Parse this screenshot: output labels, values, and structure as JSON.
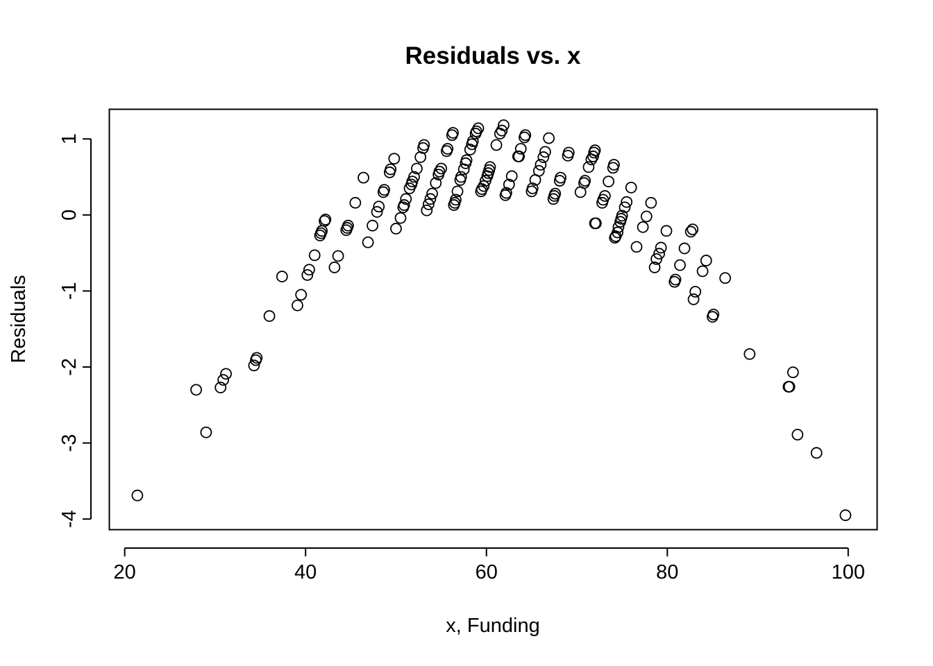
{
  "chart_data": {
    "type": "scatter",
    "title": "Residuals vs. x",
    "xlabel": "x, Funding",
    "ylabel": "Residuals",
    "xlim": [
      18.3,
      103.2
    ],
    "ylim": [
      -4.14,
      1.39
    ],
    "xticks": [
      20,
      40,
      60,
      80,
      100
    ],
    "yticks": [
      -4,
      -3,
      -2,
      -1,
      0,
      1
    ],
    "grid": false,
    "marker": "open-circle",
    "points": [
      [
        21.4,
        -3.69
      ],
      [
        27.9,
        -2.3
      ],
      [
        29.0,
        -2.86
      ],
      [
        30.6,
        -2.27
      ],
      [
        30.9,
        -2.17
      ],
      [
        31.2,
        -2.09
      ],
      [
        34.3,
        -1.98
      ],
      [
        34.5,
        -1.91
      ],
      [
        34.6,
        -1.88
      ],
      [
        36.0,
        -1.33
      ],
      [
        37.4,
        -0.81
      ],
      [
        39.1,
        -1.19
      ],
      [
        39.5,
        -1.05
      ],
      [
        40.2,
        -0.79
      ],
      [
        40.4,
        -0.72
      ],
      [
        41.0,
        -0.53
      ],
      [
        41.6,
        -0.27
      ],
      [
        41.7,
        -0.24
      ],
      [
        41.8,
        -0.21
      ],
      [
        42.1,
        -0.08
      ],
      [
        42.2,
        -0.06
      ],
      [
        43.2,
        -0.69
      ],
      [
        43.6,
        -0.54
      ],
      [
        44.5,
        -0.2
      ],
      [
        44.6,
        -0.17
      ],
      [
        44.7,
        -0.14
      ],
      [
        45.5,
        0.16
      ],
      [
        46.4,
        0.49
      ],
      [
        46.9,
        -0.36
      ],
      [
        47.4,
        -0.14
      ],
      [
        47.9,
        0.04
      ],
      [
        48.1,
        0.11
      ],
      [
        48.6,
        0.3
      ],
      [
        48.7,
        0.33
      ],
      [
        49.3,
        0.56
      ],
      [
        49.4,
        0.6
      ],
      [
        49.8,
        0.74
      ],
      [
        50.0,
        -0.18
      ],
      [
        50.5,
        -0.04
      ],
      [
        50.8,
        0.1
      ],
      [
        50.9,
        0.13
      ],
      [
        51.1,
        0.21
      ],
      [
        51.5,
        0.35
      ],
      [
        51.7,
        0.4
      ],
      [
        51.8,
        0.44
      ],
      [
        52.0,
        0.5
      ],
      [
        52.3,
        0.61
      ],
      [
        52.7,
        0.76
      ],
      [
        53.0,
        0.88
      ],
      [
        53.1,
        0.92
      ],
      [
        53.4,
        0.06
      ],
      [
        53.6,
        0.14
      ],
      [
        53.8,
        0.21
      ],
      [
        54.0,
        0.28
      ],
      [
        54.4,
        0.42
      ],
      [
        54.7,
        0.53
      ],
      [
        54.8,
        0.57
      ],
      [
        55.0,
        0.61
      ],
      [
        55.6,
        0.84
      ],
      [
        55.7,
        0.87
      ],
      [
        56.2,
        1.05
      ],
      [
        56.3,
        1.08
      ],
      [
        56.4,
        0.13
      ],
      [
        56.5,
        0.16
      ],
      [
        56.6,
        0.2
      ],
      [
        56.8,
        0.31
      ],
      [
        57.1,
        0.46
      ],
      [
        57.2,
        0.5
      ],
      [
        57.5,
        0.6
      ],
      [
        57.7,
        0.68
      ],
      [
        57.8,
        0.72
      ],
      [
        58.2,
        0.86
      ],
      [
        58.4,
        0.93
      ],
      [
        58.5,
        0.97
      ],
      [
        58.8,
        1.07
      ],
      [
        58.9,
        1.1
      ],
      [
        59.1,
        1.14
      ],
      [
        59.4,
        0.31
      ],
      [
        59.5,
        0.34
      ],
      [
        59.7,
        0.38
      ],
      [
        59.9,
        0.45
      ],
      [
        60.1,
        0.51
      ],
      [
        60.2,
        0.55
      ],
      [
        60.3,
        0.59
      ],
      [
        60.4,
        0.63
      ],
      [
        61.1,
        0.92
      ],
      [
        61.5,
        1.07
      ],
      [
        61.7,
        1.11
      ],
      [
        61.9,
        1.18
      ],
      [
        62.1,
        0.26
      ],
      [
        62.2,
        0.29
      ],
      [
        62.5,
        0.4
      ],
      [
        62.8,
        0.51
      ],
      [
        63.5,
        0.77
      ],
      [
        63.6,
        0.77
      ],
      [
        63.8,
        0.87
      ],
      [
        64.2,
        1.02
      ],
      [
        64.3,
        1.05
      ],
      [
        65.0,
        0.31
      ],
      [
        65.1,
        0.35
      ],
      [
        65.4,
        0.46
      ],
      [
        65.8,
        0.58
      ],
      [
        66.0,
        0.66
      ],
      [
        66.3,
        0.76
      ],
      [
        66.5,
        0.83
      ],
      [
        66.9,
        1.01
      ],
      [
        67.4,
        0.21
      ],
      [
        67.5,
        0.25
      ],
      [
        67.6,
        0.28
      ],
      [
        68.1,
        0.45
      ],
      [
        68.2,
        0.49
      ],
      [
        69.0,
        0.78
      ],
      [
        69.1,
        0.82
      ],
      [
        70.4,
        0.3
      ],
      [
        70.8,
        0.42
      ],
      [
        70.9,
        0.45
      ],
      [
        71.3,
        0.63
      ],
      [
        71.6,
        0.73
      ],
      [
        71.8,
        0.77
      ],
      [
        71.9,
        0.82
      ],
      [
        72.0,
        0.85
      ],
      [
        72.0,
        -0.11
      ],
      [
        72.1,
        -0.11
      ],
      [
        72.8,
        0.16
      ],
      [
        72.9,
        0.2
      ],
      [
        73.1,
        0.25
      ],
      [
        73.5,
        0.44
      ],
      [
        74.0,
        0.62
      ],
      [
        74.1,
        0.66
      ],
      [
        74.2,
        -0.3
      ],
      [
        74.3,
        -0.28
      ],
      [
        74.5,
        -0.23
      ],
      [
        74.6,
        -0.16
      ],
      [
        74.8,
        -0.09
      ],
      [
        74.9,
        -0.05
      ],
      [
        75.0,
        -0.01
      ],
      [
        75.3,
        0.1
      ],
      [
        75.5,
        0.17
      ],
      [
        76.0,
        0.36
      ],
      [
        76.6,
        -0.42
      ],
      [
        77.3,
        -0.16
      ],
      [
        77.7,
        -0.02
      ],
      [
        78.2,
        0.16
      ],
      [
        78.6,
        -0.69
      ],
      [
        78.8,
        -0.58
      ],
      [
        79.1,
        -0.51
      ],
      [
        79.3,
        -0.43
      ],
      [
        79.9,
        -0.21
      ],
      [
        80.8,
        -0.88
      ],
      [
        80.9,
        -0.85
      ],
      [
        81.4,
        -0.66
      ],
      [
        81.9,
        -0.44
      ],
      [
        82.6,
        -0.22
      ],
      [
        82.8,
        -0.19
      ],
      [
        82.9,
        -1.11
      ],
      [
        83.1,
        -1.01
      ],
      [
        83.9,
        -0.74
      ],
      [
        84.3,
        -0.6
      ],
      [
        85.0,
        -1.34
      ],
      [
        85.1,
        -1.31
      ],
      [
        86.4,
        -0.83
      ],
      [
        89.1,
        -1.83
      ],
      [
        93.4,
        -2.26
      ],
      [
        93.5,
        -2.26
      ],
      [
        93.9,
        -2.07
      ],
      [
        94.4,
        -2.89
      ],
      [
        96.5,
        -3.13
      ],
      [
        99.7,
        -3.95
      ]
    ]
  }
}
